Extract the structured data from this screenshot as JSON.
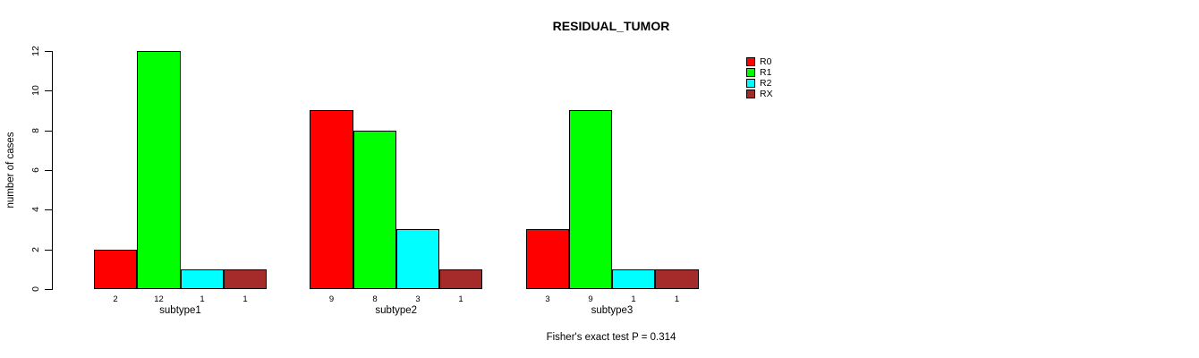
{
  "chart_data": {
    "type": "bar",
    "title": "RESIDUAL_TUMOR",
    "xlabel": "",
    "ylabel": "number of cases",
    "ylim": [
      0,
      12
    ],
    "yticks": [
      0,
      2,
      4,
      6,
      8,
      10,
      12
    ],
    "categories": [
      "subtype1",
      "subtype2",
      "subtype3"
    ],
    "series": [
      {
        "name": "R0",
        "color": "#FF0000",
        "values": [
          2,
          9,
          3
        ]
      },
      {
        "name": "R1",
        "color": "#00FF00",
        "values": [
          12,
          8,
          9
        ]
      },
      {
        "name": "R2",
        "color": "#00FFFF",
        "values": [
          1,
          3,
          1
        ]
      },
      {
        "name": "RX",
        "color": "#A52A2A",
        "values": [
          1,
          1,
          1
        ]
      }
    ],
    "bar_value_labels": true,
    "grid": false,
    "legend_position": "top-right",
    "legend_entries": [
      "R0",
      "R1",
      "R2",
      "RX"
    ],
    "annotation": "Fisher's exact test P = 0.314"
  }
}
